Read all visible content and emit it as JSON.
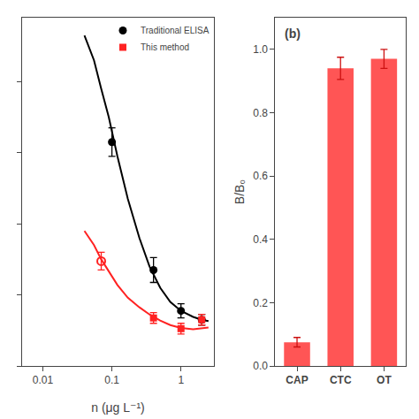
{
  "chart_data": [
    {
      "type": "scatter",
      "x_label": "n (μg L⁻¹)",
      "log": "x",
      "xlim": [
        0.005,
        3.0
      ],
      "xticks": [
        0.01,
        0.1,
        1
      ],
      "ylim": [
        0.0,
        0.98
      ],
      "yticks": [
        0.0,
        0.2,
        0.4,
        0.6,
        0.8
      ],
      "tick_labels": "x",
      "grid": false,
      "legend": "upper right",
      "series": [
        {
          "type": "line",
          "color": "#000000",
          "x": [
            0.04,
            0.055,
            0.07,
            0.09,
            0.12,
            0.17,
            0.25,
            0.35,
            0.5,
            0.7,
            1.0,
            1.5,
            2.0,
            2.5
          ],
          "values": [
            0.93,
            0.86,
            0.78,
            0.7,
            0.59,
            0.47,
            0.36,
            0.28,
            0.22,
            0.18,
            0.155,
            0.138,
            0.13,
            0.126
          ]
        },
        {
          "type": "line",
          "color": "#FF2222",
          "x": [
            0.04,
            0.055,
            0.07,
            0.09,
            0.12,
            0.17,
            0.25,
            0.35,
            0.5,
            0.7,
            1.0,
            1.5,
            2.0,
            2.5
          ],
          "values": [
            0.38,
            0.34,
            0.3,
            0.265,
            0.228,
            0.192,
            0.165,
            0.145,
            0.128,
            0.115,
            0.107,
            0.103,
            0.105,
            0.108
          ]
        },
        {
          "type": "scatter",
          "name": "Traditional ELISA",
          "color": "#000000",
          "marker": "circle",
          "x": [
            0.1,
            0.4,
            1.0,
            2.0
          ],
          "values": [
            0.63,
            0.27,
            0.155,
            0.13
          ],
          "yerr": [
            0.04,
            0.035,
            0.02,
            0.015
          ]
        },
        {
          "type": "scatter",
          "color": "#FF2222",
          "marker": "open_circle",
          "x": [
            0.07
          ],
          "values": [
            0.295
          ],
          "yerr": [
            0.025
          ]
        },
        {
          "type": "scatter",
          "name": "This method",
          "color": "#FF2222",
          "marker": "square",
          "x": [
            0.4,
            1.0,
            2.0
          ],
          "values": [
            0.135,
            0.105,
            0.13
          ],
          "yerr": [
            0.015,
            0.015,
            0.015
          ]
        }
      ]
    },
    {
      "type": "bar",
      "categories": [
        "CAP",
        "CTC",
        "OT"
      ],
      "values": [
        0.075,
        0.94,
        0.97
      ],
      "yerr": [
        0.015,
        0.035,
        0.03
      ],
      "color": "#FF5555",
      "y_label": "B/B₀",
      "ylim": [
        0.0,
        1.1
      ],
      "yticks": [
        {
          "value": 0.0,
          "label": "0.0"
        },
        0.2,
        0.4,
        0.6,
        0.8,
        {
          "value": 1.0,
          "label": "1.0"
        }
      ],
      "grid": false,
      "annotations": [
        "(b)"
      ]
    }
  ]
}
